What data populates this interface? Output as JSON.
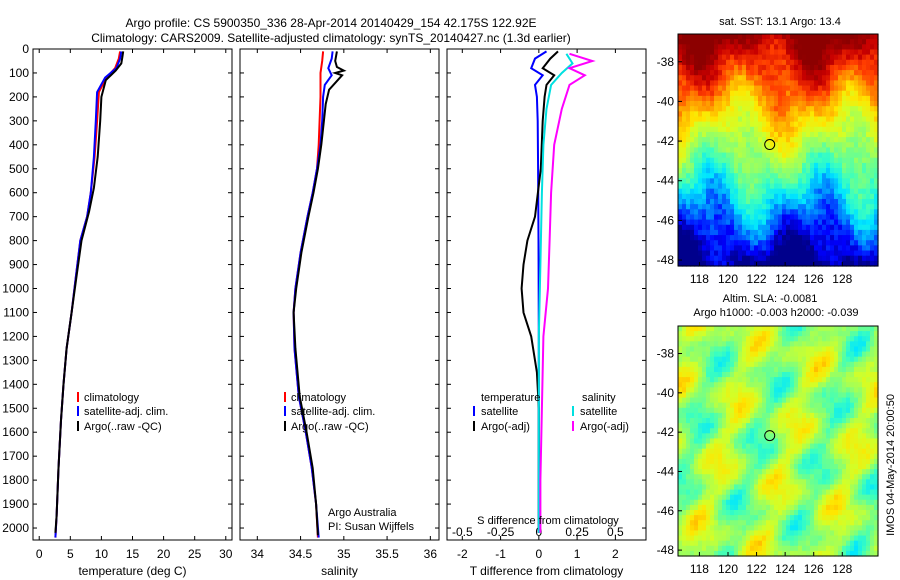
{
  "header": {
    "title_line1": "Argo profile: CS 5900350_336 28-Apr-2014 20140429_154 42.175S 122.92E",
    "title_line2": "Climatology: CARS2009. Satellite-adjusted climatology: synTS_20140427.nc (1.3d earlier)"
  },
  "side_stamp": "IMOS 04-May-2014 20:00:50",
  "colors": {
    "climatology": "#ff0000",
    "satellite": "#0000ff",
    "argo": "#000000",
    "sal_satellite": "#00e0e0",
    "sal_argo": "#ff00ff"
  },
  "chart_data": [
    {
      "type": "line",
      "panel": "temperature",
      "xlabel": "temperature (deg C)",
      "xlim": [
        -1,
        31
      ],
      "xticks": [
        "0",
        "5",
        "10",
        "15",
        "20",
        "25",
        "30"
      ],
      "xtick_values": [
        0,
        5,
        10,
        15,
        20,
        25,
        30
      ],
      "ylim": [
        0,
        2050
      ],
      "yticks": [
        "0",
        "100",
        "200",
        "300",
        "400",
        "500",
        "600",
        "700",
        "800",
        "900",
        "1000",
        "1100",
        "1200",
        "1300",
        "1400",
        "1500",
        "1600",
        "1700",
        "1800",
        "1900",
        "2000"
      ],
      "ytick_values": [
        0,
        100,
        200,
        300,
        400,
        500,
        600,
        700,
        800,
        900,
        1000,
        1100,
        1200,
        1300,
        1400,
        1500,
        1600,
        1700,
        1800,
        1900,
        2000
      ],
      "legend": [
        "climatology",
        "satellite-adj. clim.",
        "Argo(..raw -QC)"
      ],
      "series": [
        {
          "name": "climatology",
          "color": "#ff0000",
          "points": [
            [
              13.0,
              10
            ],
            [
              12.8,
              40
            ],
            [
              12.2,
              80
            ],
            [
              10.8,
              120
            ],
            [
              9.6,
              180
            ],
            [
              9.3,
              300
            ],
            [
              8.9,
              450
            ],
            [
              8.3,
              600
            ],
            [
              7.7,
              700
            ],
            [
              6.6,
              800
            ],
            [
              5.9,
              950
            ],
            [
              5.2,
              1100
            ],
            [
              4.4,
              1250
            ],
            [
              3.9,
              1400
            ],
            [
              3.5,
              1550
            ],
            [
              3.1,
              1750
            ],
            [
              2.8,
              1950
            ],
            [
              2.6,
              2040
            ]
          ]
        },
        {
          "name": "satellite-adj. clim.",
          "color": "#0000ff",
          "points": [
            [
              13.2,
              10
            ],
            [
              13.0,
              40
            ],
            [
              12.4,
              80
            ],
            [
              10.6,
              120
            ],
            [
              9.3,
              180
            ],
            [
              9.1,
              300
            ],
            [
              8.8,
              450
            ],
            [
              8.3,
              600
            ],
            [
              7.7,
              700
            ],
            [
              6.6,
              800
            ],
            [
              5.9,
              950
            ],
            [
              5.2,
              1100
            ],
            [
              4.4,
              1250
            ],
            [
              3.9,
              1400
            ],
            [
              3.5,
              1550
            ],
            [
              3.1,
              1750
            ],
            [
              2.8,
              1950
            ],
            [
              2.6,
              2040
            ]
          ]
        },
        {
          "name": "Argo(..raw -QC)",
          "color": "#000000",
          "points": [
            [
              13.5,
              10
            ],
            [
              13.4,
              30
            ],
            [
              13.2,
              60
            ],
            [
              12.3,
              90
            ],
            [
              10.7,
              130
            ],
            [
              10.0,
              200
            ],
            [
              9.8,
              300
            ],
            [
              9.4,
              450
            ],
            [
              8.8,
              580
            ],
            [
              8.0,
              680
            ],
            [
              6.8,
              800
            ],
            [
              6.0,
              950
            ],
            [
              5.2,
              1100
            ],
            [
              4.4,
              1250
            ],
            [
              3.9,
              1400
            ],
            [
              3.5,
              1550
            ],
            [
              3.1,
              1750
            ],
            [
              2.8,
              1950
            ],
            [
              2.6,
              2020
            ]
          ]
        }
      ]
    },
    {
      "type": "line",
      "panel": "salinity",
      "xlabel": "salinity",
      "xlim": [
        33.8,
        36.1
      ],
      "xticks": [
        "34",
        "34.5",
        "35",
        "35.5",
        "36"
      ],
      "xtick_values": [
        34,
        34.5,
        35,
        35.5,
        36
      ],
      "ylim": [
        0,
        2050
      ],
      "legend": [
        "climatology",
        "satellite-adj. clim.",
        "Argo(..raw -QC)"
      ],
      "annotation_line1": "Argo Australia",
      "annotation_line2": "PI: Susan Wijffels",
      "series": [
        {
          "name": "climatology",
          "color": "#ff0000",
          "points": [
            [
              34.76,
              10
            ],
            [
              34.75,
              50
            ],
            [
              34.73,
              100
            ],
            [
              34.73,
              200
            ],
            [
              34.72,
              300
            ],
            [
              34.71,
              400
            ],
            [
              34.69,
              500
            ],
            [
              34.64,
              600
            ],
            [
              34.58,
              700
            ],
            [
              34.5,
              850
            ],
            [
              34.44,
              1000
            ],
            [
              34.42,
              1100
            ],
            [
              34.43,
              1250
            ],
            [
              34.48,
              1450
            ],
            [
              34.56,
              1600
            ],
            [
              34.63,
              1750
            ],
            [
              34.68,
              1900
            ],
            [
              34.7,
              2040
            ]
          ]
        },
        {
          "name": "satellite-adj. clim.",
          "color": "#0000ff",
          "points": [
            [
              34.87,
              10
            ],
            [
              34.86,
              40
            ],
            [
              34.82,
              80
            ],
            [
              34.86,
              110
            ],
            [
              34.78,
              150
            ],
            [
              34.76,
              200
            ],
            [
              34.75,
              300
            ],
            [
              34.73,
              400
            ],
            [
              34.69,
              500
            ],
            [
              34.64,
              600
            ],
            [
              34.58,
              700
            ],
            [
              34.5,
              850
            ],
            [
              34.44,
              1000
            ],
            [
              34.42,
              1100
            ],
            [
              34.43,
              1250
            ],
            [
              34.48,
              1450
            ],
            [
              34.56,
              1600
            ],
            [
              34.63,
              1750
            ],
            [
              34.68,
              1900
            ],
            [
              34.71,
              2040
            ]
          ]
        },
        {
          "name": "Argo(..raw -QC)",
          "color": "#000000",
          "points": [
            [
              34.92,
              10
            ],
            [
              34.9,
              50
            ],
            [
              34.92,
              75
            ],
            [
              35.0,
              90
            ],
            [
              34.9,
              100
            ],
            [
              34.98,
              110
            ],
            [
              34.93,
              130
            ],
            [
              34.83,
              170
            ],
            [
              34.79,
              230
            ],
            [
              34.77,
              300
            ],
            [
              34.74,
              400
            ],
            [
              34.7,
              500
            ],
            [
              34.65,
              600
            ],
            [
              34.59,
              700
            ],
            [
              34.51,
              850
            ],
            [
              34.45,
              1000
            ],
            [
              34.42,
              1100
            ],
            [
              34.44,
              1250
            ],
            [
              34.49,
              1450
            ],
            [
              34.57,
              1600
            ],
            [
              34.64,
              1750
            ],
            [
              34.68,
              1900
            ],
            [
              34.7,
              2030
            ]
          ]
        }
      ]
    },
    {
      "type": "line",
      "panel": "difference",
      "xlabel": "T difference from climatology",
      "xlim": [
        -2.4,
        2.8
      ],
      "xticks": [
        "-2",
        "-1",
        "0",
        "1",
        "2"
      ],
      "xtick_values": [
        -2,
        -1,
        0,
        1,
        2
      ],
      "s_label": "S difference from climatology",
      "s_ticks": [
        "-0.5",
        "-0.25",
        "0",
        "0.25",
        "0.5"
      ],
      "s_tick_values": [
        -0.5,
        -0.25,
        0,
        0.25,
        0.5
      ],
      "ylim": [
        0,
        2050
      ],
      "legend_headers": [
        "temperature",
        "salinity"
      ],
      "legend": [
        "satellite",
        "Argo(-adj)",
        "satellite",
        "Argo(-adj)"
      ],
      "series": [
        {
          "name": "satellite",
          "kind": "temperature",
          "color": "#0000ff",
          "points": [
            [
              0.2,
              10
            ],
            [
              -0.1,
              40
            ],
            [
              -0.2,
              80
            ],
            [
              0.1,
              110
            ],
            [
              -0.1,
              150
            ],
            [
              -0.05,
              200
            ],
            [
              -0.03,
              300
            ],
            [
              -0.02,
              500
            ],
            [
              -0.01,
              800
            ],
            [
              0,
              1200
            ],
            [
              0,
              1600
            ],
            [
              0,
              2020
            ]
          ]
        },
        {
          "name": "Argo(-adj)",
          "kind": "temperature",
          "color": "#000000",
          "points": [
            [
              0.5,
              10
            ],
            [
              0.3,
              40
            ],
            [
              0.1,
              80
            ],
            [
              0.4,
              110
            ],
            [
              0.2,
              150
            ],
            [
              0.15,
              200
            ],
            [
              0.1,
              300
            ],
            [
              0.05,
              500
            ],
            [
              -0.1,
              700
            ],
            [
              -0.3,
              800
            ],
            [
              -0.4,
              900
            ],
            [
              -0.45,
              1000
            ],
            [
              -0.4,
              1100
            ],
            [
              -0.2,
              1200
            ],
            [
              -0.05,
              1350
            ],
            [
              0,
              1500
            ],
            [
              0,
              1700
            ],
            [
              0,
              2020
            ]
          ]
        },
        {
          "name": "satellite",
          "kind": "salinity",
          "color": "#00e0e0",
          "points": [
            [
              0.18,
              20
            ],
            [
              0.22,
              60
            ],
            [
              0.15,
              100
            ],
            [
              0.08,
              150
            ],
            [
              0.05,
              250
            ],
            [
              0.03,
              400
            ],
            [
              0.02,
              600
            ],
            [
              0.01,
              900
            ],
            [
              0,
              1200
            ],
            [
              0,
              1600
            ],
            [
              0,
              2020
            ]
          ]
        },
        {
          "name": "Argo(-adj)",
          "kind": "salinity",
          "color": "#ff00ff",
          "points": [
            [
              0.2,
              20
            ],
            [
              0.35,
              50
            ],
            [
              0.2,
              80
            ],
            [
              0.3,
              110
            ],
            [
              0.2,
              150
            ],
            [
              0.15,
              250
            ],
            [
              0.1,
              400
            ],
            [
              0.08,
              600
            ],
            [
              0.07,
              800
            ],
            [
              0.06,
              1000
            ],
            [
              0.03,
              1200
            ],
            [
              0.02,
              1500
            ],
            [
              0.01,
              1800
            ],
            [
              0.01,
              2020
            ]
          ]
        }
      ]
    },
    {
      "type": "heatmap",
      "panel": "sst_map",
      "title": "sat. SST: 13.1  Argo: 13.4",
      "xticks": [
        "118",
        "120",
        "122",
        "124",
        "126",
        "128"
      ],
      "xtick_values": [
        118,
        120,
        122,
        124,
        126,
        128
      ],
      "yticks": [
        "-38",
        "-40",
        "-42",
        "-44",
        "-46",
        "-48"
      ],
      "ytick_values": [
        -38,
        -40,
        -42,
        -44,
        -46,
        -48
      ],
      "xlim": [
        116.5,
        130.5
      ],
      "ylim": [
        -48.3,
        -36.6
      ],
      "marker": {
        "lon": 122.92,
        "lat": -42.175
      }
    },
    {
      "type": "heatmap",
      "panel": "sla_map",
      "title_line1": "Altim. SLA: -0.0081",
      "title_line2": "Argo h1000: -0.003 h2000: -0.039",
      "xticks": [
        "118",
        "120",
        "122",
        "124",
        "126",
        "128"
      ],
      "xtick_values": [
        118,
        120,
        122,
        124,
        126,
        128
      ],
      "yticks": [
        "-38",
        "-40",
        "-42",
        "-44",
        "-46",
        "-48"
      ],
      "ytick_values": [
        -38,
        -40,
        -42,
        -44,
        -46,
        -48
      ],
      "xlim": [
        116.5,
        130.5
      ],
      "ylim": [
        -48.3,
        -36.6
      ],
      "marker": {
        "lon": 122.92,
        "lat": -42.175
      }
    }
  ]
}
